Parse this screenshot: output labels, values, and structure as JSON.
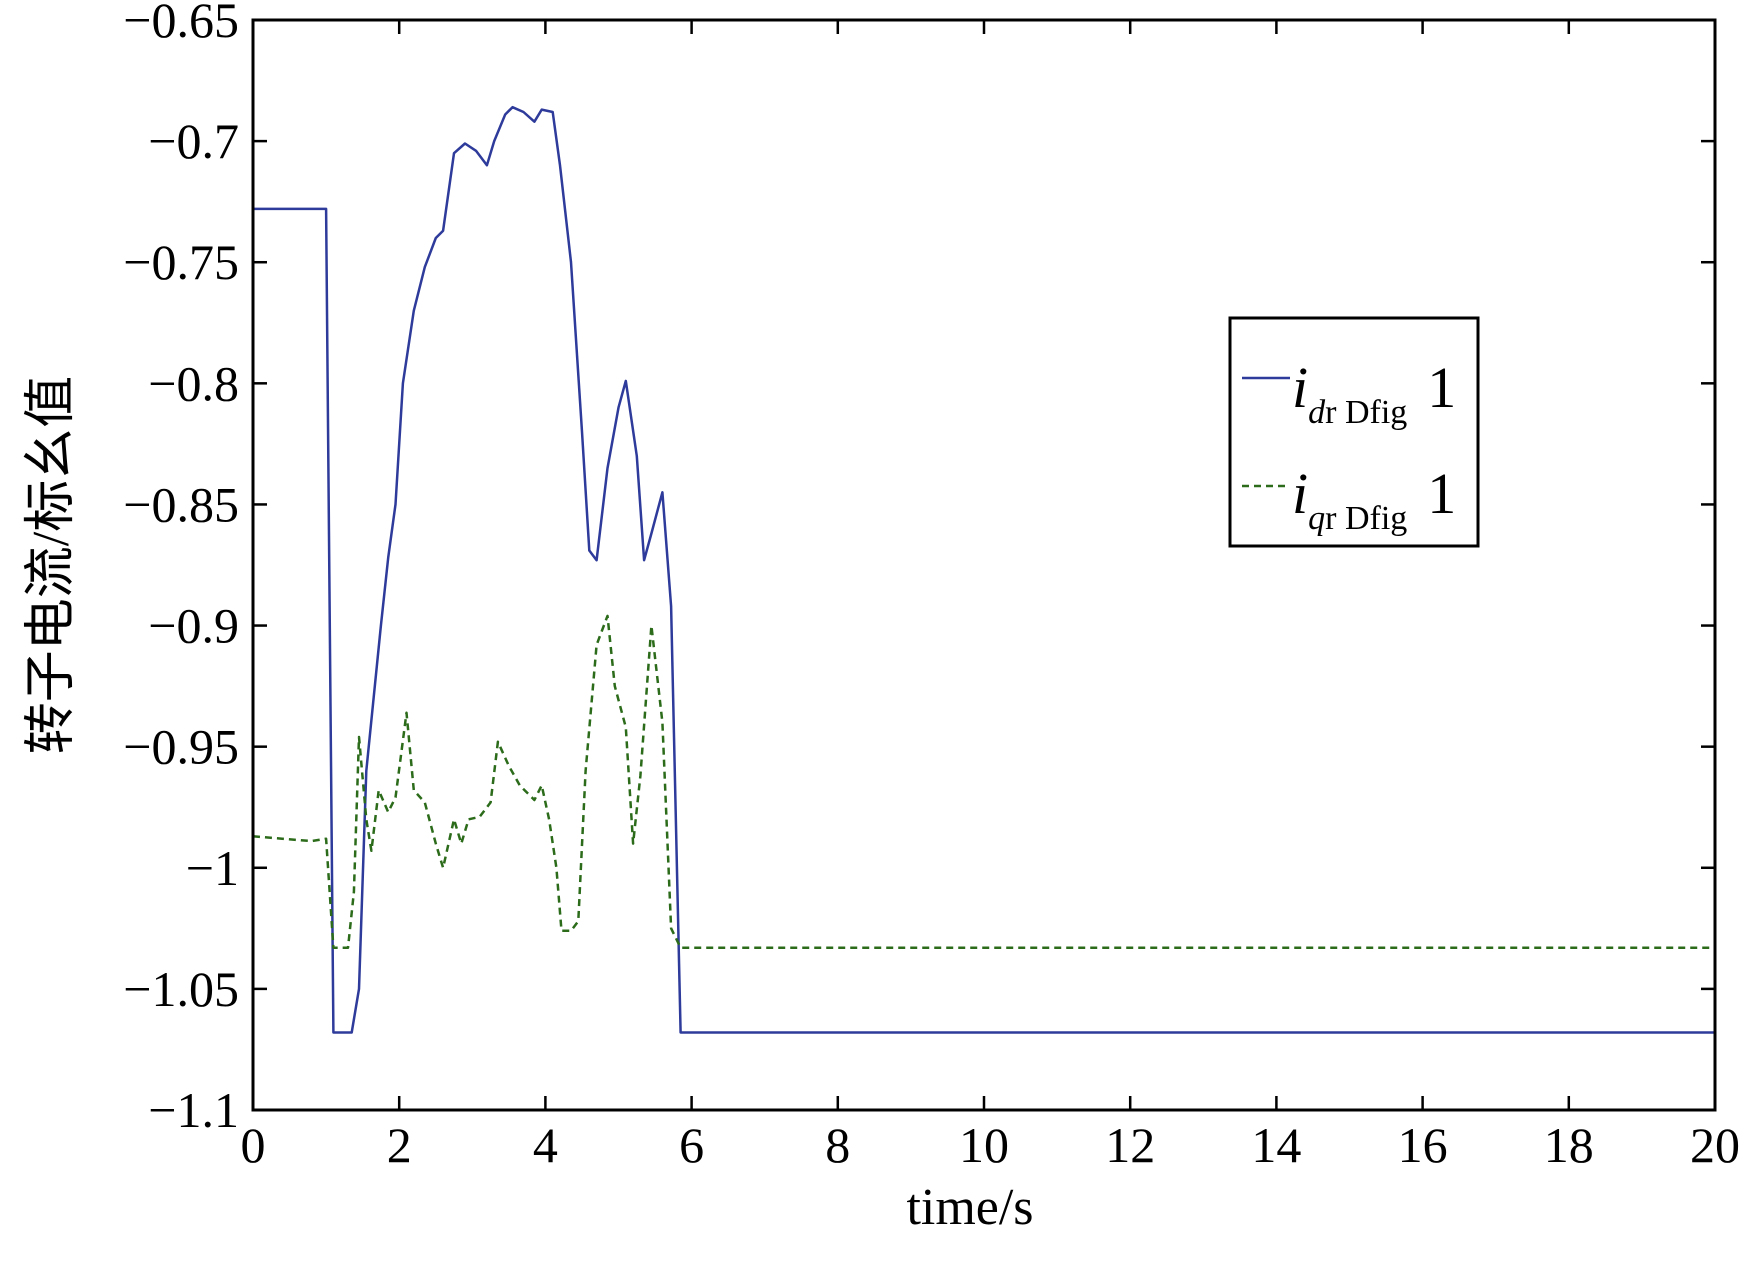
{
  "chart_data": {
    "type": "line",
    "title": "",
    "xlabel": "time/s",
    "ylabel": "转子电流/标幺值",
    "xlim": [
      0,
      20
    ],
    "ylim": [
      -1.1,
      -0.65
    ],
    "x_ticks": [
      0,
      2,
      4,
      6,
      8,
      10,
      12,
      14,
      16,
      18,
      20
    ],
    "x_tick_labels": [
      "0",
      "2",
      "4",
      "6",
      "8",
      "10",
      "12",
      "14",
      "16",
      "18",
      "20"
    ],
    "y_ticks": [
      -0.65,
      -0.7,
      -0.75,
      -0.8,
      -0.85,
      -0.9,
      -0.95,
      -1.0,
      -1.05,
      -1.1
    ],
    "y_tick_labels": [
      "−0.65",
      "−0.7",
      "−0.75",
      "−0.8",
      "−0.85",
      "−0.9",
      "−0.95",
      "−1",
      "−1.05",
      "−1.1"
    ],
    "grid": false,
    "legend_position": "right-middle",
    "series": [
      {
        "name": "i_dr Dfig 1",
        "legend_main": "i",
        "legend_sub_italic": "d",
        "legend_sub_rest": "r Dfig",
        "legend_num": "1",
        "color": "#2e3b9a",
        "style": "solid",
        "points": [
          [
            0,
            -0.728
          ],
          [
            1.0,
            -0.728
          ],
          [
            1.1,
            -1.068
          ],
          [
            1.35,
            -1.068
          ],
          [
            1.45,
            -1.05
          ],
          [
            1.55,
            -0.96
          ],
          [
            1.75,
            -0.9
          ],
          [
            1.85,
            -0.872
          ],
          [
            1.95,
            -0.85
          ],
          [
            2.05,
            -0.8
          ],
          [
            2.2,
            -0.77
          ],
          [
            2.35,
            -0.752
          ],
          [
            2.5,
            -0.74
          ],
          [
            2.6,
            -0.737
          ],
          [
            2.75,
            -0.705
          ],
          [
            2.9,
            -0.701
          ],
          [
            3.05,
            -0.704
          ],
          [
            3.2,
            -0.71
          ],
          [
            3.3,
            -0.7
          ],
          [
            3.45,
            -0.689
          ],
          [
            3.55,
            -0.686
          ],
          [
            3.7,
            -0.688
          ],
          [
            3.85,
            -0.692
          ],
          [
            3.95,
            -0.687
          ],
          [
            4.1,
            -0.688
          ],
          [
            4.2,
            -0.71
          ],
          [
            4.35,
            -0.75
          ],
          [
            4.5,
            -0.82
          ],
          [
            4.6,
            -0.869
          ],
          [
            4.7,
            -0.873
          ],
          [
            4.85,
            -0.835
          ],
          [
            5.0,
            -0.81
          ],
          [
            5.1,
            -0.799
          ],
          [
            5.25,
            -0.83
          ],
          [
            5.35,
            -0.873
          ],
          [
            5.45,
            -0.862
          ],
          [
            5.6,
            -0.845
          ],
          [
            5.72,
            -0.892
          ],
          [
            5.85,
            -1.068
          ],
          [
            20,
            -1.068
          ]
        ]
      },
      {
        "name": "i_qr Dfig 1",
        "legend_main": "i",
        "legend_sub_italic": "q",
        "legend_sub_rest": "r Dfig",
        "legend_num": "1",
        "color": "#2b6b1a",
        "style": "dashed",
        "points": [
          [
            0,
            -0.987
          ],
          [
            0.4,
            -0.988
          ],
          [
            0.8,
            -0.989
          ],
          [
            1.0,
            -0.988
          ],
          [
            1.1,
            -1.033
          ],
          [
            1.3,
            -1.033
          ],
          [
            1.38,
            -1.01
          ],
          [
            1.45,
            -0.946
          ],
          [
            1.55,
            -0.98
          ],
          [
            1.62,
            -0.993
          ],
          [
            1.72,
            -0.968
          ],
          [
            1.85,
            -0.977
          ],
          [
            1.95,
            -0.971
          ],
          [
            2.1,
            -0.936
          ],
          [
            2.2,
            -0.968
          ],
          [
            2.35,
            -0.973
          ],
          [
            2.5,
            -0.99
          ],
          [
            2.6,
            -1.0
          ],
          [
            2.75,
            -0.98
          ],
          [
            2.85,
            -0.99
          ],
          [
            2.95,
            -0.98
          ],
          [
            3.1,
            -0.979
          ],
          [
            3.25,
            -0.973
          ],
          [
            3.35,
            -0.948
          ],
          [
            3.5,
            -0.958
          ],
          [
            3.65,
            -0.966
          ],
          [
            3.85,
            -0.972
          ],
          [
            3.95,
            -0.966
          ],
          [
            4.05,
            -0.98
          ],
          [
            4.15,
            -1.0
          ],
          [
            4.22,
            -1.026
          ],
          [
            4.35,
            -1.026
          ],
          [
            4.45,
            -1.022
          ],
          [
            4.55,
            -0.96
          ],
          [
            4.7,
            -0.908
          ],
          [
            4.85,
            -0.896
          ],
          [
            4.95,
            -0.925
          ],
          [
            5.1,
            -0.942
          ],
          [
            5.2,
            -0.99
          ],
          [
            5.3,
            -0.962
          ],
          [
            5.45,
            -0.9
          ],
          [
            5.6,
            -0.94
          ],
          [
            5.72,
            -1.025
          ],
          [
            5.85,
            -1.033
          ],
          [
            20,
            -1.033
          ]
        ]
      }
    ]
  }
}
